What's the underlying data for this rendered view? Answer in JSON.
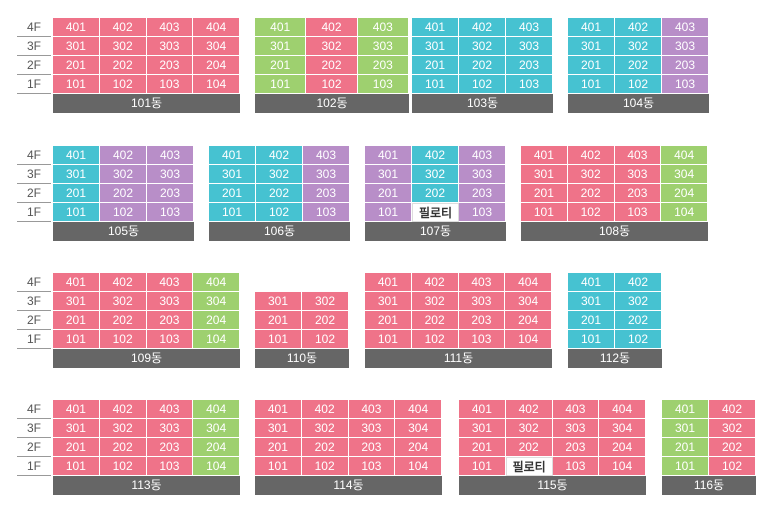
{
  "colors": {
    "pink": "#ef7389",
    "green": "#9ed06f",
    "teal": "#46c2d1",
    "purple": "#b88ec8",
    "white": "#ffffff",
    "bar": "#666666"
  },
  "floor_labels": [
    "4F",
    "3F",
    "2F",
    "1F"
  ],
  "rows": [
    {
      "buildings": [
        {
          "name": "101동",
          "floors": [
            [
              [
                "401",
                "p"
              ],
              [
                "402",
                "p"
              ],
              [
                "403",
                "p"
              ],
              [
                "404",
                "p"
              ]
            ],
            [
              [
                "301",
                "p"
              ],
              [
                "302",
                "p"
              ],
              [
                "303",
                "p"
              ],
              [
                "304",
                "p"
              ]
            ],
            [
              [
                "201",
                "p"
              ],
              [
                "202",
                "p"
              ],
              [
                "203",
                "p"
              ],
              [
                "204",
                "p"
              ]
            ],
            [
              [
                "101",
                "p"
              ],
              [
                "102",
                "p"
              ],
              [
                "103",
                "p"
              ],
              [
                "104",
                "p"
              ]
            ]
          ]
        },
        {
          "name": "102동",
          "floors": [
            [
              [
                "401",
                "g"
              ],
              [
                "402",
                "p"
              ],
              [
                "403",
                "g"
              ]
            ],
            [
              [
                "301",
                "g"
              ],
              [
                "302",
                "p"
              ],
              [
                "303",
                "g"
              ]
            ],
            [
              [
                "201",
                "g"
              ],
              [
                "202",
                "p"
              ],
              [
                "203",
                "g"
              ]
            ],
            [
              [
                "101",
                "g"
              ],
              [
                "102",
                "p"
              ],
              [
                "103",
                "g"
              ]
            ]
          ]
        },
        {
          "name": "103동",
          "floors": [
            [
              [
                "401",
                "t"
              ],
              [
                "402",
                "t"
              ],
              [
                "403",
                "t"
              ]
            ],
            [
              [
                "301",
                "t"
              ],
              [
                "302",
                "t"
              ],
              [
                "303",
                "t"
              ]
            ],
            [
              [
                "201",
                "t"
              ],
              [
                "202",
                "t"
              ],
              [
                "203",
                "t"
              ]
            ],
            [
              [
                "101",
                "t"
              ],
              [
                "102",
                "t"
              ],
              [
                "103",
                "t"
              ]
            ]
          ]
        },
        {
          "name": "104동",
          "floors": [
            [
              [
                "401",
                "t"
              ],
              [
                "402",
                "t"
              ],
              [
                "403",
                "u"
              ]
            ],
            [
              [
                "301",
                "t"
              ],
              [
                "302",
                "t"
              ],
              [
                "303",
                "u"
              ]
            ],
            [
              [
                "201",
                "t"
              ],
              [
                "202",
                "t"
              ],
              [
                "203",
                "u"
              ]
            ],
            [
              [
                "101",
                "t"
              ],
              [
                "102",
                "t"
              ],
              [
                "103",
                "u"
              ]
            ]
          ]
        }
      ]
    },
    {
      "buildings": [
        {
          "name": "105동",
          "floors": [
            [
              [
                "401",
                "t"
              ],
              [
                "402",
                "u"
              ],
              [
                "403",
                "u"
              ]
            ],
            [
              [
                "301",
                "t"
              ],
              [
                "302",
                "u"
              ],
              [
                "303",
                "u"
              ]
            ],
            [
              [
                "201",
                "t"
              ],
              [
                "202",
                "u"
              ],
              [
                "203",
                "u"
              ]
            ],
            [
              [
                "101",
                "t"
              ],
              [
                "102",
                "u"
              ],
              [
                "103",
                "u"
              ]
            ]
          ]
        },
        {
          "name": "106동",
          "floors": [
            [
              [
                "401",
                "t"
              ],
              [
                "402",
                "t"
              ],
              [
                "403",
                "u"
              ]
            ],
            [
              [
                "301",
                "t"
              ],
              [
                "302",
                "t"
              ],
              [
                "303",
                "u"
              ]
            ],
            [
              [
                "201",
                "t"
              ],
              [
                "202",
                "t"
              ],
              [
                "203",
                "u"
              ]
            ],
            [
              [
                "101",
                "t"
              ],
              [
                "102",
                "t"
              ],
              [
                "103",
                "u"
              ]
            ]
          ]
        },
        {
          "name": "107동",
          "floors": [
            [
              [
                "401",
                "u"
              ],
              [
                "402",
                "t"
              ],
              [
                "403",
                "u"
              ]
            ],
            [
              [
                "301",
                "u"
              ],
              [
                "302",
                "t"
              ],
              [
                "303",
                "u"
              ]
            ],
            [
              [
                "201",
                "u"
              ],
              [
                "202",
                "t"
              ],
              [
                "203",
                "u"
              ]
            ],
            [
              [
                "101",
                "u"
              ],
              [
                "필로티",
                "w"
              ],
              [
                "103",
                "u"
              ]
            ]
          ]
        },
        {
          "name": "108동",
          "floors": [
            [
              [
                "401",
                "p"
              ],
              [
                "402",
                "p"
              ],
              [
                "403",
                "p"
              ],
              [
                "404",
                "g"
              ]
            ],
            [
              [
                "301",
                "p"
              ],
              [
                "302",
                "p"
              ],
              [
                "303",
                "p"
              ],
              [
                "304",
                "g"
              ]
            ],
            [
              [
                "201",
                "p"
              ],
              [
                "202",
                "p"
              ],
              [
                "203",
                "p"
              ],
              [
                "204",
                "g"
              ]
            ],
            [
              [
                "101",
                "p"
              ],
              [
                "102",
                "p"
              ],
              [
                "103",
                "p"
              ],
              [
                "104",
                "g"
              ]
            ]
          ]
        }
      ]
    },
    {
      "buildings": [
        {
          "name": "109동",
          "floors": [
            [
              [
                "401",
                "p"
              ],
              [
                "402",
                "p"
              ],
              [
                "403",
                "p"
              ],
              [
                "404",
                "g"
              ]
            ],
            [
              [
                "301",
                "p"
              ],
              [
                "302",
                "p"
              ],
              [
                "303",
                "p"
              ],
              [
                "304",
                "g"
              ]
            ],
            [
              [
                "201",
                "p"
              ],
              [
                "202",
                "p"
              ],
              [
                "203",
                "p"
              ],
              [
                "204",
                "g"
              ]
            ],
            [
              [
                "101",
                "p"
              ],
              [
                "102",
                "p"
              ],
              [
                "103",
                "p"
              ],
              [
                "104",
                "g"
              ]
            ]
          ]
        },
        {
          "name": "110동",
          "floors": [
            [
              [
                "301",
                "p"
              ],
              [
                "302",
                "p"
              ]
            ],
            [
              [
                "201",
                "p"
              ],
              [
                "202",
                "p"
              ]
            ],
            [
              [
                "101",
                "p"
              ],
              [
                "102",
                "p"
              ]
            ]
          ]
        },
        {
          "name": "111동",
          "floors": [
            [
              [
                "401",
                "p"
              ],
              [
                "402",
                "p"
              ],
              [
                "403",
                "p"
              ],
              [
                "404",
                "p"
              ]
            ],
            [
              [
                "301",
                "p"
              ],
              [
                "302",
                "p"
              ],
              [
                "303",
                "p"
              ],
              [
                "304",
                "p"
              ]
            ],
            [
              [
                "201",
                "p"
              ],
              [
                "202",
                "p"
              ],
              [
                "203",
                "p"
              ],
              [
                "204",
                "p"
              ]
            ],
            [
              [
                "101",
                "p"
              ],
              [
                "102",
                "p"
              ],
              [
                "103",
                "p"
              ],
              [
                "104",
                "p"
              ]
            ]
          ]
        },
        {
          "name": "112동",
          "floors": [
            [
              [
                "401",
                "t"
              ],
              [
                "402",
                "t"
              ]
            ],
            [
              [
                "301",
                "t"
              ],
              [
                "302",
                "t"
              ]
            ],
            [
              [
                "201",
                "t"
              ],
              [
                "202",
                "t"
              ]
            ],
            [
              [
                "101",
                "t"
              ],
              [
                "102",
                "t"
              ]
            ]
          ]
        }
      ]
    },
    {
      "buildings": [
        {
          "name": "113동",
          "floors": [
            [
              [
                "401",
                "p"
              ],
              [
                "402",
                "p"
              ],
              [
                "403",
                "p"
              ],
              [
                "404",
                "g"
              ]
            ],
            [
              [
                "301",
                "p"
              ],
              [
                "302",
                "p"
              ],
              [
                "303",
                "p"
              ],
              [
                "304",
                "g"
              ]
            ],
            [
              [
                "201",
                "p"
              ],
              [
                "202",
                "p"
              ],
              [
                "203",
                "p"
              ],
              [
                "204",
                "g"
              ]
            ],
            [
              [
                "101",
                "p"
              ],
              [
                "102",
                "p"
              ],
              [
                "103",
                "p"
              ],
              [
                "104",
                "g"
              ]
            ]
          ]
        },
        {
          "name": "114동",
          "floors": [
            [
              [
                "401",
                "p"
              ],
              [
                "402",
                "p"
              ],
              [
                "403",
                "p"
              ],
              [
                "404",
                "p"
              ]
            ],
            [
              [
                "301",
                "p"
              ],
              [
                "302",
                "p"
              ],
              [
                "303",
                "p"
              ],
              [
                "304",
                "p"
              ]
            ],
            [
              [
                "201",
                "p"
              ],
              [
                "202",
                "p"
              ],
              [
                "203",
                "p"
              ],
              [
                "204",
                "p"
              ]
            ],
            [
              [
                "101",
                "p"
              ],
              [
                "102",
                "p"
              ],
              [
                "103",
                "p"
              ],
              [
                "104",
                "p"
              ]
            ]
          ]
        },
        {
          "name": "115동",
          "floors": [
            [
              [
                "401",
                "p"
              ],
              [
                "402",
                "p"
              ],
              [
                "403",
                "p"
              ],
              [
                "404",
                "p"
              ]
            ],
            [
              [
                "301",
                "p"
              ],
              [
                "302",
                "p"
              ],
              [
                "303",
                "p"
              ],
              [
                "304",
                "p"
              ]
            ],
            [
              [
                "201",
                "p"
              ],
              [
                "202",
                "p"
              ],
              [
                "203",
                "p"
              ],
              [
                "204",
                "p"
              ]
            ],
            [
              [
                "101",
                "p"
              ],
              [
                "필로티",
                "w"
              ],
              [
                "103",
                "p"
              ],
              [
                "104",
                "p"
              ]
            ]
          ]
        },
        {
          "name": "116동",
          "floors": [
            [
              [
                "401",
                "g"
              ],
              [
                "402",
                "p"
              ]
            ],
            [
              [
                "301",
                "g"
              ],
              [
                "302",
                "p"
              ]
            ],
            [
              [
                "201",
                "g"
              ],
              [
                "202",
                "p"
              ]
            ],
            [
              [
                "101",
                "g"
              ],
              [
                "102",
                "p"
              ]
            ]
          ]
        }
      ]
    }
  ]
}
